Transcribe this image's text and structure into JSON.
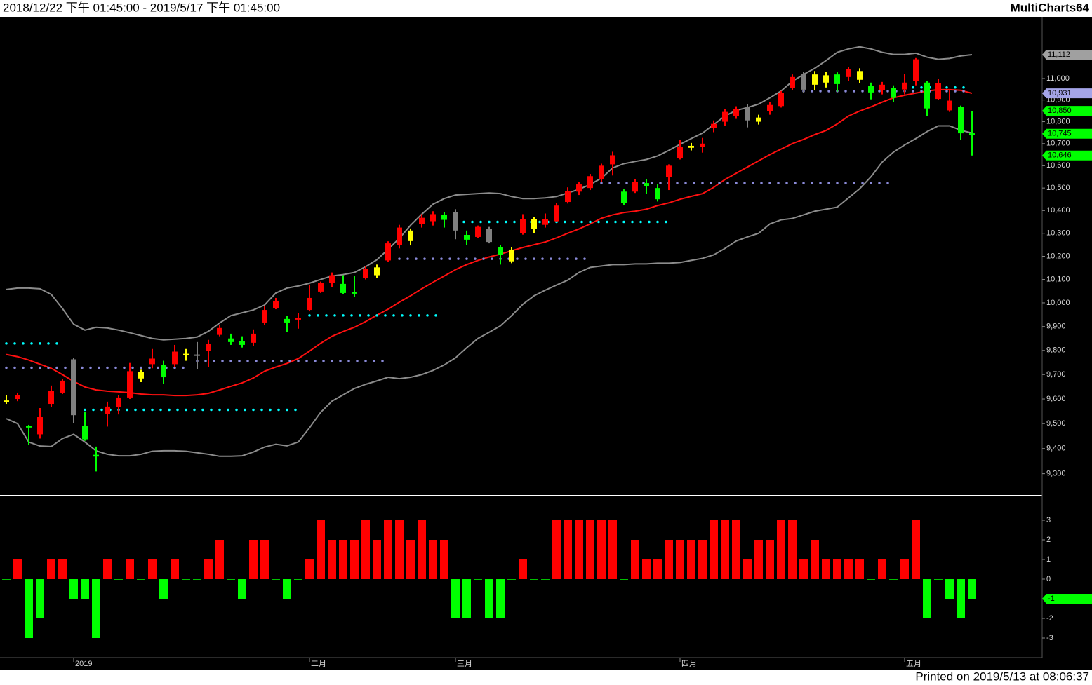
{
  "header": {
    "range": "2018/12/22 下午 01:45:00 - 2019/5/17 下午 01:45:00",
    "app": "MultiCharts64"
  },
  "footer": "Printed on 2019/5/13 at 08:06:37",
  "chart_data": [
    {
      "type": "candlestick",
      "categories": [
        null,
        null,
        null,
        null,
        null,
        null,
        "2019",
        null,
        null,
        null,
        null,
        null,
        null,
        null,
        null,
        null,
        null,
        null,
        null,
        null,
        null,
        null,
        null,
        null,
        null,
        null,
        null,
        "二月",
        null,
        null,
        null,
        null,
        null,
        null,
        null,
        null,
        null,
        null,
        null,
        null,
        "三月",
        null,
        null,
        null,
        null,
        null,
        null,
        null,
        null,
        null,
        null,
        null,
        null,
        null,
        null,
        null,
        null,
        null,
        null,
        null,
        "四月",
        null,
        null,
        null,
        null,
        null,
        null,
        null,
        null,
        null,
        null,
        null,
        null,
        null,
        null,
        null,
        null,
        null,
        null,
        null,
        "五月",
        null,
        null,
        null,
        null,
        null,
        null
      ],
      "open": [
        9594,
        9600,
        9490,
        9457,
        9580,
        9626,
        9763,
        9490,
        9375,
        9540,
        9566,
        9606,
        9684,
        9743,
        9740,
        9743,
        9786,
        9783,
        9797,
        9865,
        9850,
        9838,
        9832,
        9917,
        9979,
        9932,
        9929,
        9970,
        10048,
        10084,
        10081,
        10045,
        10106,
        10118,
        10182,
        10250,
        10266,
        10340,
        10353,
        10381,
        10393,
        10293,
        10284,
        10319,
        10238,
        10178,
        10300,
        10362,
        10337,
        10353,
        10438,
        10484,
        10500,
        10541,
        10606,
        10484,
        10484,
        10522,
        10500,
        10550,
        10634,
        10681,
        10684,
        10771,
        10800,
        10826,
        10868,
        10819,
        10848,
        10872,
        10955,
        11022,
        10971,
        10981,
        11019,
        11007,
        11035,
        10965,
        10945,
        10955,
        10949,
        10987,
        10981,
        10905,
        10852,
        10868,
        10747
      ],
      "high": [
        9617,
        9626,
        9495,
        9563,
        9655,
        9683,
        9769,
        9546,
        9408,
        9589,
        9617,
        9748,
        9720,
        9806,
        9757,
        9823,
        9806,
        9835,
        9844,
        9908,
        9870,
        9859,
        9888,
        9988,
        10021,
        9944,
        9956,
        10078,
        10091,
        10130,
        10118,
        10115,
        10158,
        10164,
        10265,
        10337,
        10321,
        10384,
        10397,
        10393,
        10406,
        10312,
        10334,
        10328,
        10250,
        10238,
        10384,
        10371,
        10387,
        10434,
        10503,
        10528,
        10563,
        10609,
        10663,
        10494,
        10541,
        10541,
        10516,
        10606,
        10716,
        10703,
        10726,
        10806,
        10858,
        10871,
        10881,
        10832,
        10890,
        10942,
        11019,
        11032,
        11035,
        11032,
        11029,
        11054,
        11048,
        10981,
        10984,
        10968,
        11022,
        11096,
        10990,
        10999,
        10948,
        10874,
        10850
      ],
      "low": [
        9580,
        9591,
        9414,
        9440,
        9566,
        9620,
        9503,
        9431,
        9309,
        9488,
        9537,
        9600,
        9669,
        9726,
        9663,
        9731,
        9757,
        9723,
        9731,
        9859,
        9823,
        9812,
        9820,
        9908,
        9973,
        9876,
        9891,
        9964,
        10042,
        10066,
        10036,
        10024,
        10100,
        10106,
        10176,
        10234,
        10247,
        10325,
        10334,
        10325,
        10274,
        10250,
        10278,
        10256,
        10164,
        10170,
        10294,
        10300,
        10325,
        10350,
        10431,
        10469,
        10491,
        10528,
        10556,
        10425,
        10478,
        10475,
        10440,
        10491,
        10628,
        10669,
        10659,
        10752,
        10781,
        10813,
        10774,
        10787,
        10832,
        10865,
        10945,
        10932,
        10945,
        10958,
        10939,
        10990,
        10978,
        10903,
        10926,
        10890,
        10926,
        10968,
        10826,
        10900,
        10845,
        10716,
        10646
      ],
      "close": [
        9591,
        9617,
        9484,
        9526,
        9632,
        9675,
        9534,
        9437,
        9368,
        9569,
        9606,
        9714,
        9711,
        9766,
        9689,
        9795,
        9780,
        9780,
        9826,
        9894,
        9835,
        9823,
        9870,
        9970,
        10009,
        9917,
        9935,
        10021,
        10084,
        10118,
        10042,
        10039,
        10145,
        10152,
        10256,
        10325,
        10312,
        10368,
        10384,
        10359,
        10312,
        10272,
        10328,
        10262,
        10206,
        10229,
        10362,
        10318,
        10362,
        10422,
        10487,
        10516,
        10553,
        10600,
        10647,
        10434,
        10528,
        10509,
        10450,
        10600,
        10684,
        10690,
        10700,
        10790,
        10845,
        10858,
        10806,
        10800,
        10877,
        10932,
        11007,
        10948,
        11019,
        11015,
        10974,
        11045,
        10994,
        10935,
        10971,
        10910,
        10981,
        11090,
        10861,
        10977,
        10897,
        10747,
        10745
      ],
      "candle_colors": [
        "#ffff00",
        "#ff0000",
        "#00ff00",
        "#ff0000",
        "#ff0000",
        "#ff0000",
        "#808080",
        "#00ff00",
        "#00ff00",
        "#ff0000",
        "#ff0000",
        "#ff0000",
        "#ffff00",
        "#ff0000",
        "#00ff00",
        "#ff0000",
        "#ffff00",
        "#808080",
        "#ff0000",
        "#ff0000",
        "#00ff00",
        "#00ff00",
        "#ff0000",
        "#ff0000",
        "#ff0000",
        "#00ff00",
        "#ff0000",
        "#ff0000",
        "#ff0000",
        "#ff0000",
        "#00ff00",
        "#00ff00",
        "#ff0000",
        "#ffff00",
        "#ff0000",
        "#ff0000",
        "#ffff00",
        "#ff0000",
        "#ff0000",
        "#00ff00",
        "#808080",
        "#00ff00",
        "#ff0000",
        "#808080",
        "#00ff00",
        "#ffff00",
        "#ff0000",
        "#ffff00",
        "#ff0000",
        "#ff0000",
        "#ff0000",
        "#ff0000",
        "#ff0000",
        "#ff0000",
        "#ff0000",
        "#00ff00",
        "#ff0000",
        "#00ff00",
        "#00ff00",
        "#ff0000",
        "#ff0000",
        "#ffff00",
        "#ff0000",
        "#ff0000",
        "#ff0000",
        "#ff0000",
        "#808080",
        "#ffff00",
        "#ff0000",
        "#ff0000",
        "#ff0000",
        "#808080",
        "#ffff00",
        "#ffff00",
        "#00ff00",
        "#ff0000",
        "#ffff00",
        "#00ff00",
        "#ff0000",
        "#00ff00",
        "#ff0000",
        "#ff0000",
        "#00ff00",
        "#ff0000",
        "#ff0000",
        "#00ff00",
        "#00ff00"
      ],
      "series": [
        {
          "color": "#8c8c8c",
          "values": [
            10057,
            10063,
            10063,
            10060,
            10036,
            9976,
            9910,
            9885,
            9897,
            9894,
            9885,
            9874,
            9862,
            9850,
            9844,
            9847,
            9850,
            9856,
            9880,
            9915,
            9946,
            9958,
            9970,
            9991,
            10042,
            10063,
            10072,
            10084,
            10100,
            10115,
            10121,
            10130,
            10155,
            10185,
            10230,
            10278,
            10335,
            10384,
            10428,
            10453,
            10469,
            10472,
            10475,
            10478,
            10475,
            10462,
            10453,
            10453,
            10456,
            10462,
            10478,
            10494,
            10516,
            10544,
            10590,
            10609,
            10619,
            10628,
            10644,
            10669,
            10697,
            10723,
            10748,
            10787,
            10826,
            10852,
            10865,
            10881,
            10910,
            10942,
            10987,
            11019,
            11048,
            11084,
            11123,
            11139,
            11149,
            11139,
            11123,
            11113,
            11113,
            11119,
            11100,
            11090,
            11094,
            11106,
            11112
          ]
        },
        {
          "color": "#ff1010",
          "values": [
            9783,
            9774,
            9760,
            9743,
            9726,
            9700,
            9672,
            9649,
            9637,
            9632,
            9629,
            9626,
            9620,
            9617,
            9617,
            9614,
            9614,
            9617,
            9623,
            9637,
            9652,
            9666,
            9686,
            9714,
            9731,
            9746,
            9766,
            9797,
            9830,
            9859,
            9879,
            9897,
            9921,
            9948,
            9973,
            10003,
            10030,
            10060,
            10088,
            10115,
            10142,
            10164,
            10182,
            10197,
            10209,
            10224,
            10238,
            10250,
            10262,
            10280,
            10300,
            10319,
            10341,
            10366,
            10381,
            10391,
            10397,
            10406,
            10422,
            10434,
            10450,
            10463,
            10475,
            10503,
            10538,
            10566,
            10594,
            10622,
            10650,
            10675,
            10700,
            10719,
            10741,
            10760,
            10790,
            10826,
            10849,
            10868,
            10890,
            10910,
            10922,
            10932,
            10942,
            10948,
            10948,
            10945,
            10931
          ]
        },
        {
          "color": "#8c8c8c",
          "values": [
            9520,
            9500,
            9426,
            9410,
            9408,
            9440,
            9457,
            9426,
            9391,
            9377,
            9371,
            9371,
            9377,
            9389,
            9391,
            9391,
            9389,
            9383,
            9377,
            9369,
            9369,
            9371,
            9386,
            9406,
            9417,
            9411,
            9426,
            9483,
            9546,
            9591,
            9617,
            9643,
            9660,
            9674,
            9689,
            9683,
            9689,
            9700,
            9717,
            9740,
            9769,
            9811,
            9850,
            9876,
            9903,
            9946,
            9994,
            10030,
            10054,
            10076,
            10097,
            10130,
            10152,
            10158,
            10164,
            10164,
            10167,
            10167,
            10170,
            10170,
            10173,
            10182,
            10191,
            10206,
            10234,
            10266,
            10284,
            10300,
            10341,
            10359,
            10365,
            10381,
            10397,
            10406,
            10415,
            10456,
            10497,
            10550,
            10616,
            10661,
            10694,
            10723,
            10755,
            10781,
            10781,
            10761,
            10748
          ]
        }
      ],
      "levels": [
        {
          "value": 9829,
          "from": 0,
          "to": 5,
          "color": "#00ffff"
        },
        {
          "value": 9728,
          "from": 0,
          "to": 16,
          "color": "#8a8ad8"
        },
        {
          "value": 9556,
          "from": 7,
          "to": 26,
          "color": "#00ffff"
        },
        {
          "value": 9756,
          "from": 17,
          "to": 34,
          "color": "#8a8ad8"
        },
        {
          "value": 9947,
          "from": 27,
          "to": 39,
          "color": "#00ffff"
        },
        {
          "value": 10189,
          "from": 35,
          "to": 52,
          "color": "#8a8ad8"
        },
        {
          "value": 10350,
          "from": 40,
          "to": 59,
          "color": "#00ffff"
        },
        {
          "value": 10522,
          "from": 53,
          "to": 79,
          "color": "#8a8ad8"
        },
        {
          "value": 10941,
          "from": 71,
          "to": 86,
          "color": "#8a8ad8"
        },
        {
          "value": 10958,
          "from": 80,
          "to": 86,
          "color": "#00ffff"
        }
      ],
      "price_tags": [
        {
          "value": 11112,
          "label": "11,112",
          "color": "#a0a0a0"
        },
        {
          "value": 10931,
          "label": "10,931",
          "color": "#a4a4e8"
        },
        {
          "value": 10850,
          "label": "10,850",
          "color": "#00ff00"
        },
        {
          "value": 10745,
          "label": "10,745",
          "color": "#00ff00"
        },
        {
          "value": 10646,
          "label": "10,646",
          "color": "#00ff00"
        }
      ],
      "log": true,
      "ylim": [
        9219,
        11292
      ],
      "yticks": [
        {
          "value": 9300,
          "label": "9,300"
        },
        {
          "value": 9400,
          "label": "9,400"
        },
        {
          "value": 9500,
          "label": "9,500"
        },
        {
          "value": 9600,
          "label": "9,600"
        },
        {
          "value": 9700,
          "label": "9,700"
        },
        {
          "value": 9800,
          "label": "9,800"
        },
        {
          "value": 9900,
          "label": "9,900"
        },
        {
          "value": 10000,
          "label": "10,000"
        },
        {
          "value": 10100,
          "label": "10,100"
        },
        {
          "value": 10200,
          "label": "10,200"
        },
        {
          "value": 10300,
          "label": "10,300"
        },
        {
          "value": 10400,
          "label": "10,400"
        },
        {
          "value": 10500,
          "label": "10,500"
        },
        {
          "value": 10600,
          "label": "10,600"
        },
        {
          "value": 10700,
          "label": "10,700"
        },
        {
          "value": 10800,
          "label": "10,800"
        },
        {
          "value": 10900,
          "label": "10,900"
        },
        {
          "value": 11000,
          "label": "11,000"
        }
      ]
    },
    {
      "type": "bar",
      "values": [
        0,
        1,
        -3,
        -2,
        1,
        1,
        -1,
        -1,
        -3,
        1,
        0,
        1,
        0,
        1,
        -1,
        1,
        0,
        0,
        1,
        2,
        0,
        -1,
        2,
        2,
        0,
        -1,
        0,
        1,
        3,
        2,
        2,
        2,
        3,
        2,
        3,
        3,
        2,
        3,
        2,
        2,
        -2,
        -2,
        0,
        -2,
        -2,
        0,
        1,
        0,
        0,
        3,
        3,
        3,
        3,
        3,
        3,
        0,
        2,
        1,
        1,
        2,
        2,
        2,
        2,
        3,
        3,
        3,
        1,
        2,
        2,
        3,
        3,
        1,
        2,
        1,
        1,
        1,
        1,
        0,
        1,
        0,
        1,
        3,
        -2,
        0,
        -1,
        -2,
        -1
      ],
      "up_color": "#ff0000",
      "down_color": "#00ff00",
      "ylim": [
        -4,
        4
      ],
      "yticks": [
        3,
        2,
        1,
        0,
        -1,
        -2,
        -3
      ]
    }
  ]
}
